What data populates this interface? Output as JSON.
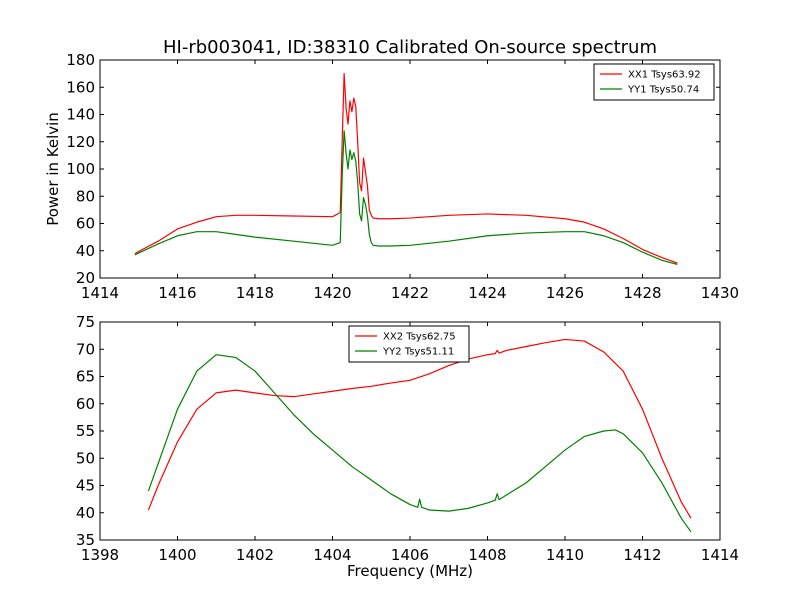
{
  "figure": {
    "title": "HI-rb003041, ID:38310 Calibrated On-source spectrum"
  },
  "chart_data": [
    {
      "type": "line",
      "title": "HI-rb003041, ID:38310 Calibrated On-source spectrum",
      "xlabel": "",
      "ylabel": "Power in Kelvin",
      "xlim": [
        1414,
        1430
      ],
      "ylim": [
        20,
        180
      ],
      "xticks": [
        1414,
        1416,
        1418,
        1420,
        1422,
        1424,
        1426,
        1428,
        1430
      ],
      "yticks": [
        20,
        40,
        60,
        80,
        100,
        120,
        140,
        160,
        180
      ],
      "grid": false,
      "legend_position": "top-right",
      "series": [
        {
          "name": "XX1 Tsys63.92",
          "color": "#ff0000",
          "x": [
            1414.9,
            1415.5,
            1416.0,
            1416.5,
            1417.0,
            1417.5,
            1418.0,
            1419.0,
            1420.0,
            1420.2,
            1420.25,
            1420.3,
            1420.35,
            1420.4,
            1420.45,
            1420.5,
            1420.55,
            1420.6,
            1420.65,
            1420.7,
            1420.75,
            1420.8,
            1420.85,
            1420.9,
            1420.95,
            1421.0,
            1421.05,
            1421.2,
            1421.5,
            1422.0,
            1423.0,
            1424.0,
            1425.0,
            1426.0,
            1426.5,
            1427.0,
            1427.5,
            1428.0,
            1428.5,
            1428.9
          ],
          "y": [
            38,
            47,
            56,
            61,
            65,
            66,
            66,
            65.5,
            65,
            68,
            120,
            170,
            145,
            133,
            150,
            142,
            152,
            146,
            120,
            90,
            84,
            108,
            98,
            88,
            70,
            66,
            64,
            63.5,
            63.5,
            64,
            66,
            67,
            66,
            63.5,
            61,
            56,
            49,
            41,
            35,
            31
          ]
        },
        {
          "name": "YY1 Tsys50.74",
          "color": "#008000",
          "x": [
            1414.9,
            1415.5,
            1416.0,
            1416.5,
            1417.0,
            1417.5,
            1418.0,
            1419.0,
            1420.0,
            1420.2,
            1420.25,
            1420.3,
            1420.35,
            1420.4,
            1420.45,
            1420.5,
            1420.55,
            1420.6,
            1420.65,
            1420.7,
            1420.75,
            1420.8,
            1420.85,
            1420.9,
            1420.95,
            1421.0,
            1421.05,
            1421.2,
            1421.5,
            1422.0,
            1423.0,
            1424.0,
            1425.0,
            1426.0,
            1426.5,
            1427.0,
            1427.5,
            1428.0,
            1428.5,
            1428.9
          ],
          "y": [
            37,
            45,
            51,
            54,
            54,
            52,
            50,
            47,
            44,
            46,
            95,
            128,
            112,
            100,
            114,
            107,
            112,
            106,
            90,
            67,
            62,
            79,
            74,
            66,
            52,
            46,
            44,
            43.5,
            43.5,
            44,
            47,
            51,
            53,
            54,
            54,
            51,
            46,
            39,
            33,
            30
          ]
        }
      ]
    },
    {
      "type": "line",
      "title": "",
      "xlabel": "Frequency (MHz)",
      "ylabel": "",
      "xlim": [
        1398,
        1414
      ],
      "ylim": [
        35,
        75
      ],
      "xticks": [
        1398,
        1400,
        1402,
        1404,
        1406,
        1408,
        1410,
        1412,
        1414
      ],
      "yticks": [
        35,
        40,
        45,
        50,
        55,
        60,
        65,
        70,
        75
      ],
      "grid": false,
      "legend_position": "top-center",
      "series": [
        {
          "name": "XX2 Tsys62.75",
          "color": "#ff0000",
          "x": [
            1399.25,
            1399.5,
            1400.0,
            1400.5,
            1401.0,
            1401.5,
            1402.0,
            1402.5,
            1403.0,
            1403.5,
            1404.0,
            1404.5,
            1405.0,
            1405.5,
            1406.0,
            1406.5,
            1407.0,
            1407.5,
            1408.0,
            1408.2,
            1408.25,
            1408.3,
            1408.5,
            1409.0,
            1409.5,
            1410.0,
            1410.5,
            1411.0,
            1411.5,
            1412.0,
            1412.5,
            1413.0,
            1413.25
          ],
          "y": [
            40.5,
            45,
            53,
            59,
            62,
            62.5,
            62,
            61.5,
            61.3,
            61.8,
            62.3,
            62.8,
            63.2,
            63.8,
            64.3,
            65.5,
            67,
            68.2,
            69,
            69.2,
            69.8,
            69.3,
            69.8,
            70.5,
            71.2,
            71.8,
            71.5,
            69.5,
            66,
            59,
            50,
            42,
            39
          ]
        },
        {
          "name": "YY2 Tsys51.11",
          "color": "#008000",
          "x": [
            1399.25,
            1399.5,
            1400.0,
            1400.5,
            1401.0,
            1401.5,
            1402.0,
            1402.5,
            1403.0,
            1403.5,
            1404.0,
            1404.5,
            1405.0,
            1405.5,
            1406.0,
            1406.2,
            1406.25,
            1406.3,
            1406.5,
            1407.0,
            1407.5,
            1408.0,
            1408.2,
            1408.25,
            1408.3,
            1408.5,
            1409.0,
            1409.5,
            1410.0,
            1410.5,
            1411.0,
            1411.3,
            1411.5,
            1412.0,
            1412.5,
            1413.0,
            1413.25
          ],
          "y": [
            44,
            49,
            59,
            66,
            69,
            68.5,
            66,
            62,
            58,
            54.5,
            51.5,
            48.5,
            46,
            43.5,
            41.5,
            41,
            42.5,
            41,
            40.5,
            40.3,
            40.8,
            41.8,
            42.3,
            43.5,
            42.4,
            43.3,
            45.5,
            48.5,
            51.5,
            54,
            55,
            55.2,
            54.5,
            51,
            45.5,
            39,
            36.5
          ]
        }
      ]
    }
  ]
}
